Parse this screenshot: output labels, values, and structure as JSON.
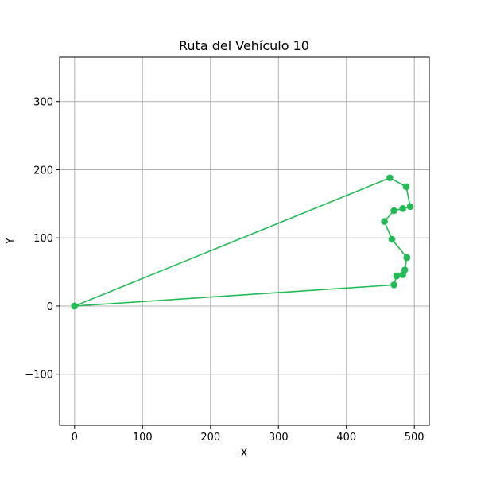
{
  "chart_data": {
    "type": "line",
    "title": "Ruta del Vehículo 10",
    "xlabel": "X",
    "ylabel": "Y",
    "xlim": [
      -22,
      522
    ],
    "ylim": [
      -175,
      365
    ],
    "xticks": [
      0,
      100,
      200,
      300,
      400,
      500
    ],
    "yticks": [
      -100,
      0,
      100,
      200,
      300
    ],
    "xtick_labels": [
      "0",
      "100",
      "200",
      "300",
      "400",
      "500"
    ],
    "ytick_labels": [
      "−100",
      "0",
      "100",
      "200",
      "300"
    ],
    "grid": true,
    "color": "#22bb55",
    "series": [
      {
        "x": [
          0,
          464,
          488,
          494,
          483,
          470,
          456,
          467,
          489,
          486,
          483,
          474,
          470,
          0
        ],
        "y": [
          0,
          188,
          175,
          146,
          143,
          140,
          124,
          98,
          71,
          53,
          46,
          44,
          31,
          0
        ]
      }
    ]
  }
}
